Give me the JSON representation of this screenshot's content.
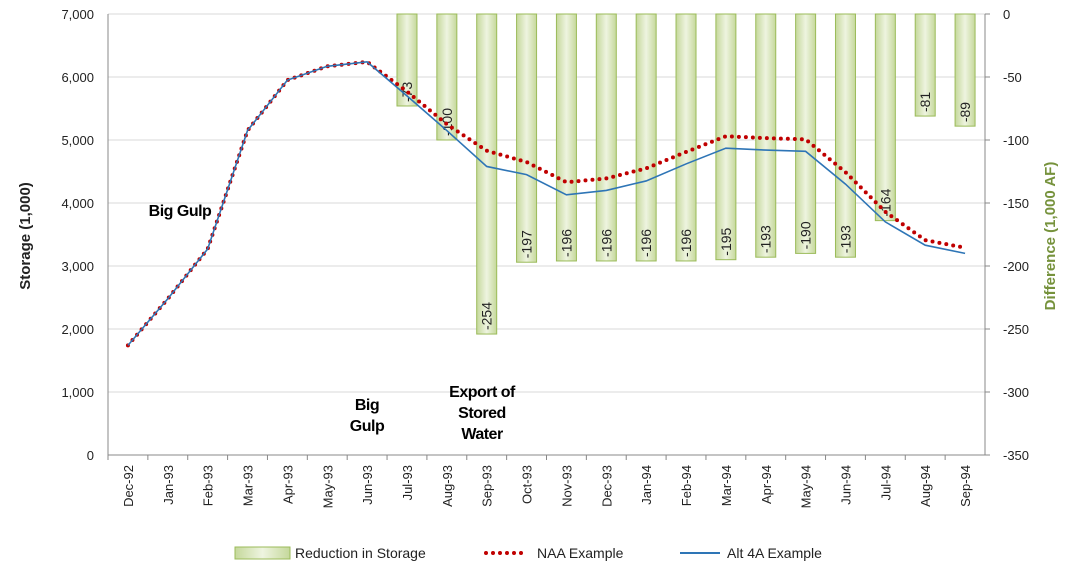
{
  "chart_data": {
    "type": "bar-line",
    "categories": [
      "Dec-92",
      "Jan-93",
      "Feb-93",
      "Mar-93",
      "Apr-93",
      "May-93",
      "Jun-93",
      "Jul-93",
      "Aug-93",
      "Sep-93",
      "Oct-93",
      "Nov-93",
      "Dec-93",
      "Jan-94",
      "Feb-94",
      "Mar-94",
      "Apr-94",
      "May-94",
      "Jun-94",
      "Jul-94",
      "Aug-94",
      "Sep-94"
    ],
    "series": [
      {
        "name": "Reduction in Storage",
        "type": "bar",
        "axis": "y2",
        "color": "#9bbb59",
        "values": [
          null,
          null,
          null,
          null,
          null,
          null,
          null,
          -73,
          -100,
          -254,
          -197,
          -196,
          -196,
          -196,
          -196,
          -195,
          -193,
          -190,
          -193,
          -164,
          -81,
          -89
        ]
      },
      {
        "name": "NAA Example",
        "type": "line",
        "style": "dotted",
        "color": "#c00000",
        "values": [
          1740,
          2480,
          3270,
          5150,
          5950,
          6170,
          6240,
          5770,
          5250,
          4830,
          4650,
          4330,
          4390,
          4550,
          4810,
          5060,
          5030,
          5010,
          4490,
          3860,
          3410,
          3290
        ]
      },
      {
        "name": "Alt 4A Example",
        "type": "line",
        "style": "solid",
        "color": "#2e75b6",
        "values": [
          1740,
          2480,
          3270,
          5150,
          5950,
          6170,
          6240,
          5700,
          5150,
          4580,
          4450,
          4130,
          4200,
          4350,
          4620,
          4870,
          4840,
          4820,
          4300,
          3700,
          3330,
          3200
        ]
      }
    ],
    "y_label": "Storage (1,000)",
    "y2_label": "Difference (1,000 AF)",
    "ylim": [
      0,
      7000
    ],
    "yticks": [
      0,
      {
        "value": 1000,
        "label": "1,000"
      },
      {
        "value": 2000,
        "label": "2,000"
      },
      {
        "value": 3000,
        "label": "3,000"
      },
      {
        "value": 4000,
        "label": "4,000"
      },
      {
        "value": 5000,
        "label": "5,000"
      },
      {
        "value": 6000,
        "label": "6,000"
      },
      {
        "value": 7000,
        "label": "7,000"
      }
    ],
    "y2lim": [
      -350,
      0
    ],
    "y2ticks": [
      0,
      -50,
      -100,
      -150,
      -200,
      -250,
      -300,
      -350
    ],
    "y2_color": "#76923c",
    "grid": true,
    "legend": "bottom",
    "annotations": [
      {
        "lines": [
          "Big Gulp"
        ]
      },
      {
        "lines": [
          "Big",
          "Gulp"
        ]
      },
      {
        "lines": [
          "Export of",
          "Stored",
          "Water"
        ]
      }
    ]
  }
}
